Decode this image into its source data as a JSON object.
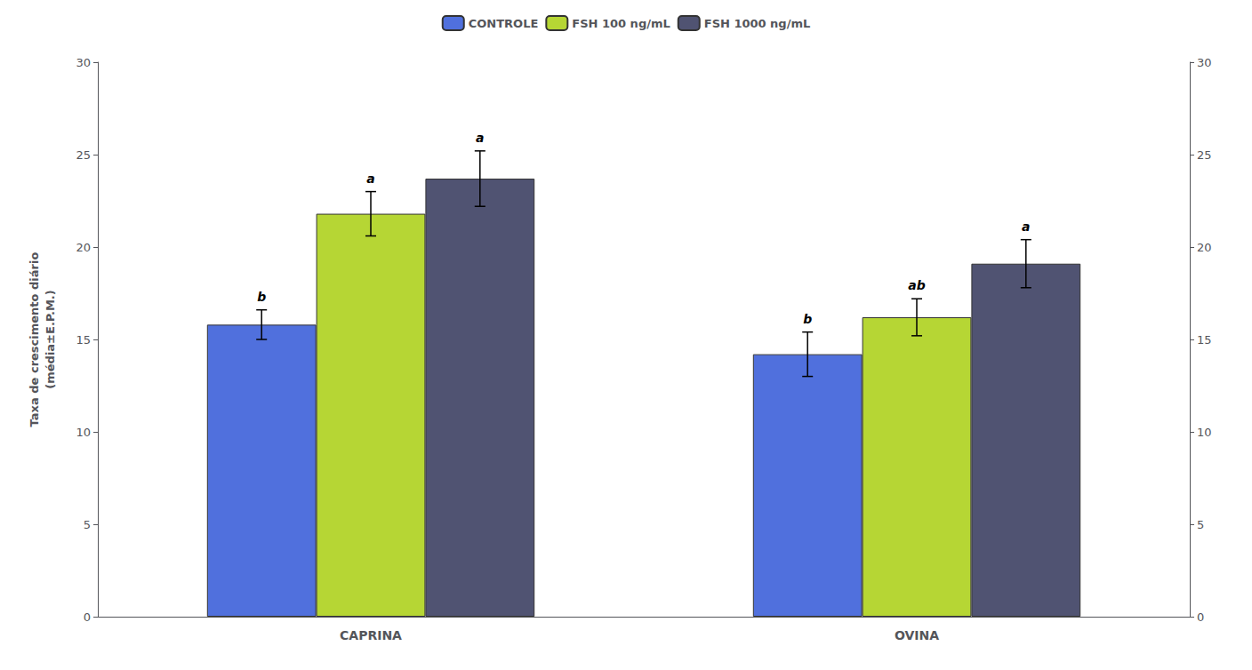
{
  "chart_data": {
    "type": "bar",
    "categories": [
      "CAPRINA",
      "OVINA"
    ],
    "series": [
      {
        "name": "CONTROLE",
        "values": [
          15.8,
          14.2
        ],
        "errors": [
          0.8,
          1.2
        ],
        "significance": [
          "b",
          "b"
        ]
      },
      {
        "name": "FSH 100 ng/mL",
        "values": [
          21.8,
          16.2
        ],
        "errors": [
          1.2,
          1.0
        ],
        "significance": [
          "a",
          "ab"
        ]
      },
      {
        "name": "FSH 1000 ng/mL",
        "values": [
          23.7,
          19.1
        ],
        "errors": [
          1.5,
          1.3
        ],
        "significance": [
          "a",
          "a"
        ]
      }
    ],
    "ylabel": "Taxa de crescimento diário\n(média±E.P.M.)",
    "ylim": [
      0,
      30
    ],
    "yticks": [
      0,
      5,
      10,
      15,
      20,
      25,
      30
    ],
    "y2lim": [
      0,
      30
    ],
    "y2ticks": [
      0,
      5,
      10,
      15,
      20,
      25,
      30
    ],
    "grid": false,
    "legend": "top"
  }
}
